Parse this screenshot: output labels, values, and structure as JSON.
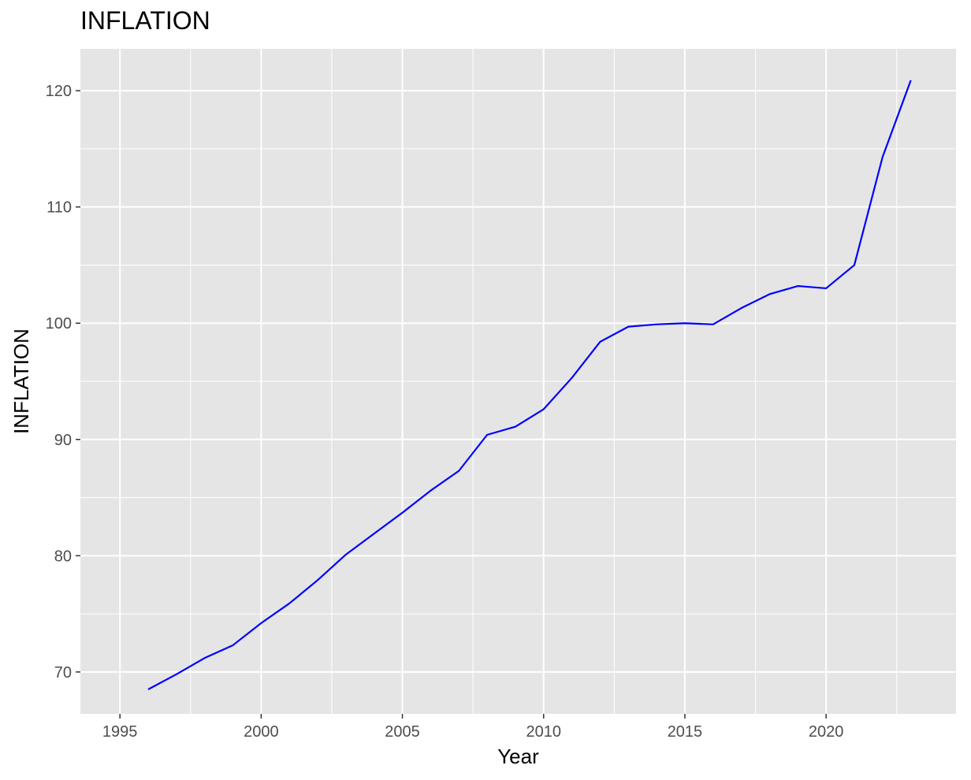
{
  "chart_data": {
    "type": "line",
    "title": "INFLATION",
    "xlabel": "Year",
    "ylabel": "INFLATION",
    "xlim": [
      1993.6,
      2024.6
    ],
    "ylim": [
      66.4,
      123.6
    ],
    "x_ticks": [
      1995,
      2000,
      2005,
      2010,
      2015,
      2020
    ],
    "x_minor_ticks": [
      1997.5,
      2002.5,
      2007.5,
      2012.5,
      2017.5,
      2022.5
    ],
    "y_ticks": [
      70,
      80,
      90,
      100,
      110,
      120
    ],
    "y_minor_ticks": [
      75,
      85,
      95,
      105,
      115
    ],
    "grid": true,
    "legend": "none",
    "colors": {
      "line": "#0000ff",
      "panel": "#e5e5e5",
      "grid": "#ffffff",
      "tick_text": "#4d4d4d"
    },
    "series": [
      {
        "x": [
          1996,
          1997,
          1998,
          1999,
          2000,
          2001,
          2002,
          2003,
          2004,
          2005,
          2006,
          2007,
          2008,
          2009,
          2010,
          2011,
          2012,
          2013,
          2014,
          2015,
          2016,
          2017,
          2018,
          2019,
          2020,
          2021,
          2022,
          2023
        ],
        "y": [
          68.5,
          69.8,
          71.2,
          72.3,
          74.2,
          75.9,
          77.9,
          80.1,
          81.9,
          83.7,
          85.6,
          87.3,
          90.4,
          91.1,
          92.6,
          95.3,
          98.4,
          99.7,
          99.9,
          100.0,
          99.9,
          101.3,
          102.5,
          103.2,
          103.0,
          105.0,
          114.3,
          120.9
        ]
      }
    ]
  }
}
